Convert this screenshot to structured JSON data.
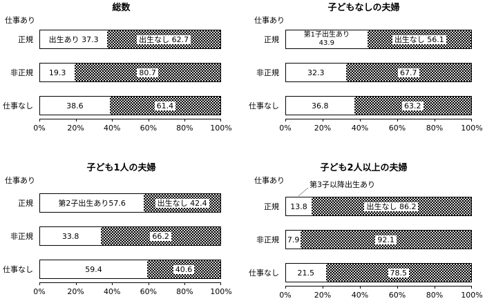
{
  "figure": {
    "background": "#ffffff",
    "foreground": "#000000",
    "callout_line_color": "#999999"
  },
  "axis": {
    "ticks": [
      "0%",
      "20%",
      "40%",
      "60%",
      "80%",
      "100%"
    ]
  },
  "panels": [
    {
      "title": "総数",
      "group_label": "仕事あり",
      "rows": [
        {
          "label": "正規",
          "white_pct": 37.3,
          "white_label": "出生あり 37.3",
          "dark_pct": 62.7,
          "dark_label": "出生なし 62.7"
        },
        {
          "label": "非正規",
          "white_pct": 19.3,
          "white_label": "19.3",
          "dark_pct": 80.7,
          "dark_label": "80.7"
        },
        {
          "label": "仕事なし",
          "white_pct": 38.6,
          "white_label": "38.6",
          "dark_pct": 61.4,
          "dark_label": "61.4"
        }
      ]
    },
    {
      "title": "子どもなしの夫婦",
      "group_label": "仕事あり",
      "rows": [
        {
          "label": "正規",
          "white_pct": 43.9,
          "white_label_line1": "第1子出生あり",
          "white_label_line2": "43.9",
          "dark_pct": 56.1,
          "dark_label": "出生なし 56.1"
        },
        {
          "label": "非正規",
          "white_pct": 32.3,
          "white_label": "32.3",
          "dark_pct": 67.7,
          "dark_label": "67.7"
        },
        {
          "label": "仕事なし",
          "white_pct": 36.8,
          "white_label": "36.8",
          "dark_pct": 63.2,
          "dark_label": "63.2"
        }
      ]
    },
    {
      "title": "子ども1人の夫婦",
      "group_label": "仕事あり",
      "rows": [
        {
          "label": "正規",
          "white_pct": 57.6,
          "white_label": "第2子出生あり57.6",
          "dark_pct": 42.4,
          "dark_label": "出生なし 42.4"
        },
        {
          "label": "非正規",
          "white_pct": 33.8,
          "white_label": "33.8",
          "dark_pct": 66.2,
          "dark_label": "66.2"
        },
        {
          "label": "仕事なし",
          "white_pct": 59.4,
          "white_label": "59.4",
          "dark_pct": 40.6,
          "dark_label": "40.6"
        }
      ]
    },
    {
      "title": "子ども2人以上の夫婦",
      "group_label": "仕事あり",
      "annotation": "第3子以降出生あり",
      "rows": [
        {
          "label": "正規",
          "white_pct": 13.8,
          "white_label": "13.8",
          "dark_pct": 86.2,
          "dark_label": "出生なし 86.2"
        },
        {
          "label": "非正規",
          "white_pct": 7.9,
          "white_label": "7.9",
          "dark_pct": 92.1,
          "dark_label": "92.1"
        },
        {
          "label": "仕事なし",
          "white_pct": 21.5,
          "white_label": "21.5",
          "dark_pct": 78.5,
          "dark_label": "78.5"
        }
      ]
    }
  ],
  "chart_data": [
    {
      "type": "bar",
      "orientation": "horizontal",
      "stacked": true,
      "title": "総数",
      "group_label": "仕事あり",
      "categories": [
        "正規",
        "非正規",
        "仕事なし"
      ],
      "series": [
        {
          "name": "出生あり",
          "values": [
            37.3,
            19.3,
            38.6
          ]
        },
        {
          "name": "出生なし",
          "values": [
            62.7,
            80.7,
            61.4
          ]
        }
      ],
      "xlim": [
        0,
        100
      ],
      "tick_labels": [
        "0%",
        "20%",
        "40%",
        "60%",
        "80%",
        "100%"
      ],
      "legend": "in-bar labels",
      "grid": false
    },
    {
      "type": "bar",
      "orientation": "horizontal",
      "stacked": true,
      "title": "子どもなしの夫婦",
      "group_label": "仕事あり",
      "categories": [
        "正規",
        "非正規",
        "仕事なし"
      ],
      "series": [
        {
          "name": "第1子出生あり",
          "values": [
            43.9,
            32.3,
            36.8
          ]
        },
        {
          "name": "出生なし",
          "values": [
            56.1,
            67.7,
            63.2
          ]
        }
      ],
      "xlim": [
        0,
        100
      ],
      "tick_labels": [
        "0%",
        "20%",
        "40%",
        "60%",
        "80%",
        "100%"
      ],
      "legend": "in-bar labels",
      "grid": false
    },
    {
      "type": "bar",
      "orientation": "horizontal",
      "stacked": true,
      "title": "子ども1人の夫婦",
      "group_label": "仕事あり",
      "categories": [
        "正規",
        "非正規",
        "仕事なし"
      ],
      "series": [
        {
          "name": "第2子出生あり",
          "values": [
            57.6,
            33.8,
            59.4
          ]
        },
        {
          "name": "出生なし",
          "values": [
            42.4,
            66.2,
            40.6
          ]
        }
      ],
      "xlim": [
        0,
        100
      ],
      "tick_labels": [
        "0%",
        "20%",
        "40%",
        "60%",
        "80%",
        "100%"
      ],
      "legend": "in-bar labels",
      "grid": false
    },
    {
      "type": "bar",
      "orientation": "horizontal",
      "stacked": true,
      "title": "子ども2人以上の夫婦",
      "group_label": "仕事あり",
      "annotation": "第3子以降出生あり",
      "categories": [
        "正規",
        "非正規",
        "仕事なし"
      ],
      "series": [
        {
          "name": "第3子以降出生あり",
          "values": [
            13.8,
            7.9,
            21.5
          ]
        },
        {
          "name": "出生なし",
          "values": [
            86.2,
            92.1,
            78.5
          ]
        }
      ],
      "xlim": [
        0,
        100
      ],
      "tick_labels": [
        "0%",
        "20%",
        "40%",
        "60%",
        "80%",
        "100%"
      ],
      "legend": "in-bar labels",
      "grid": false
    }
  ]
}
